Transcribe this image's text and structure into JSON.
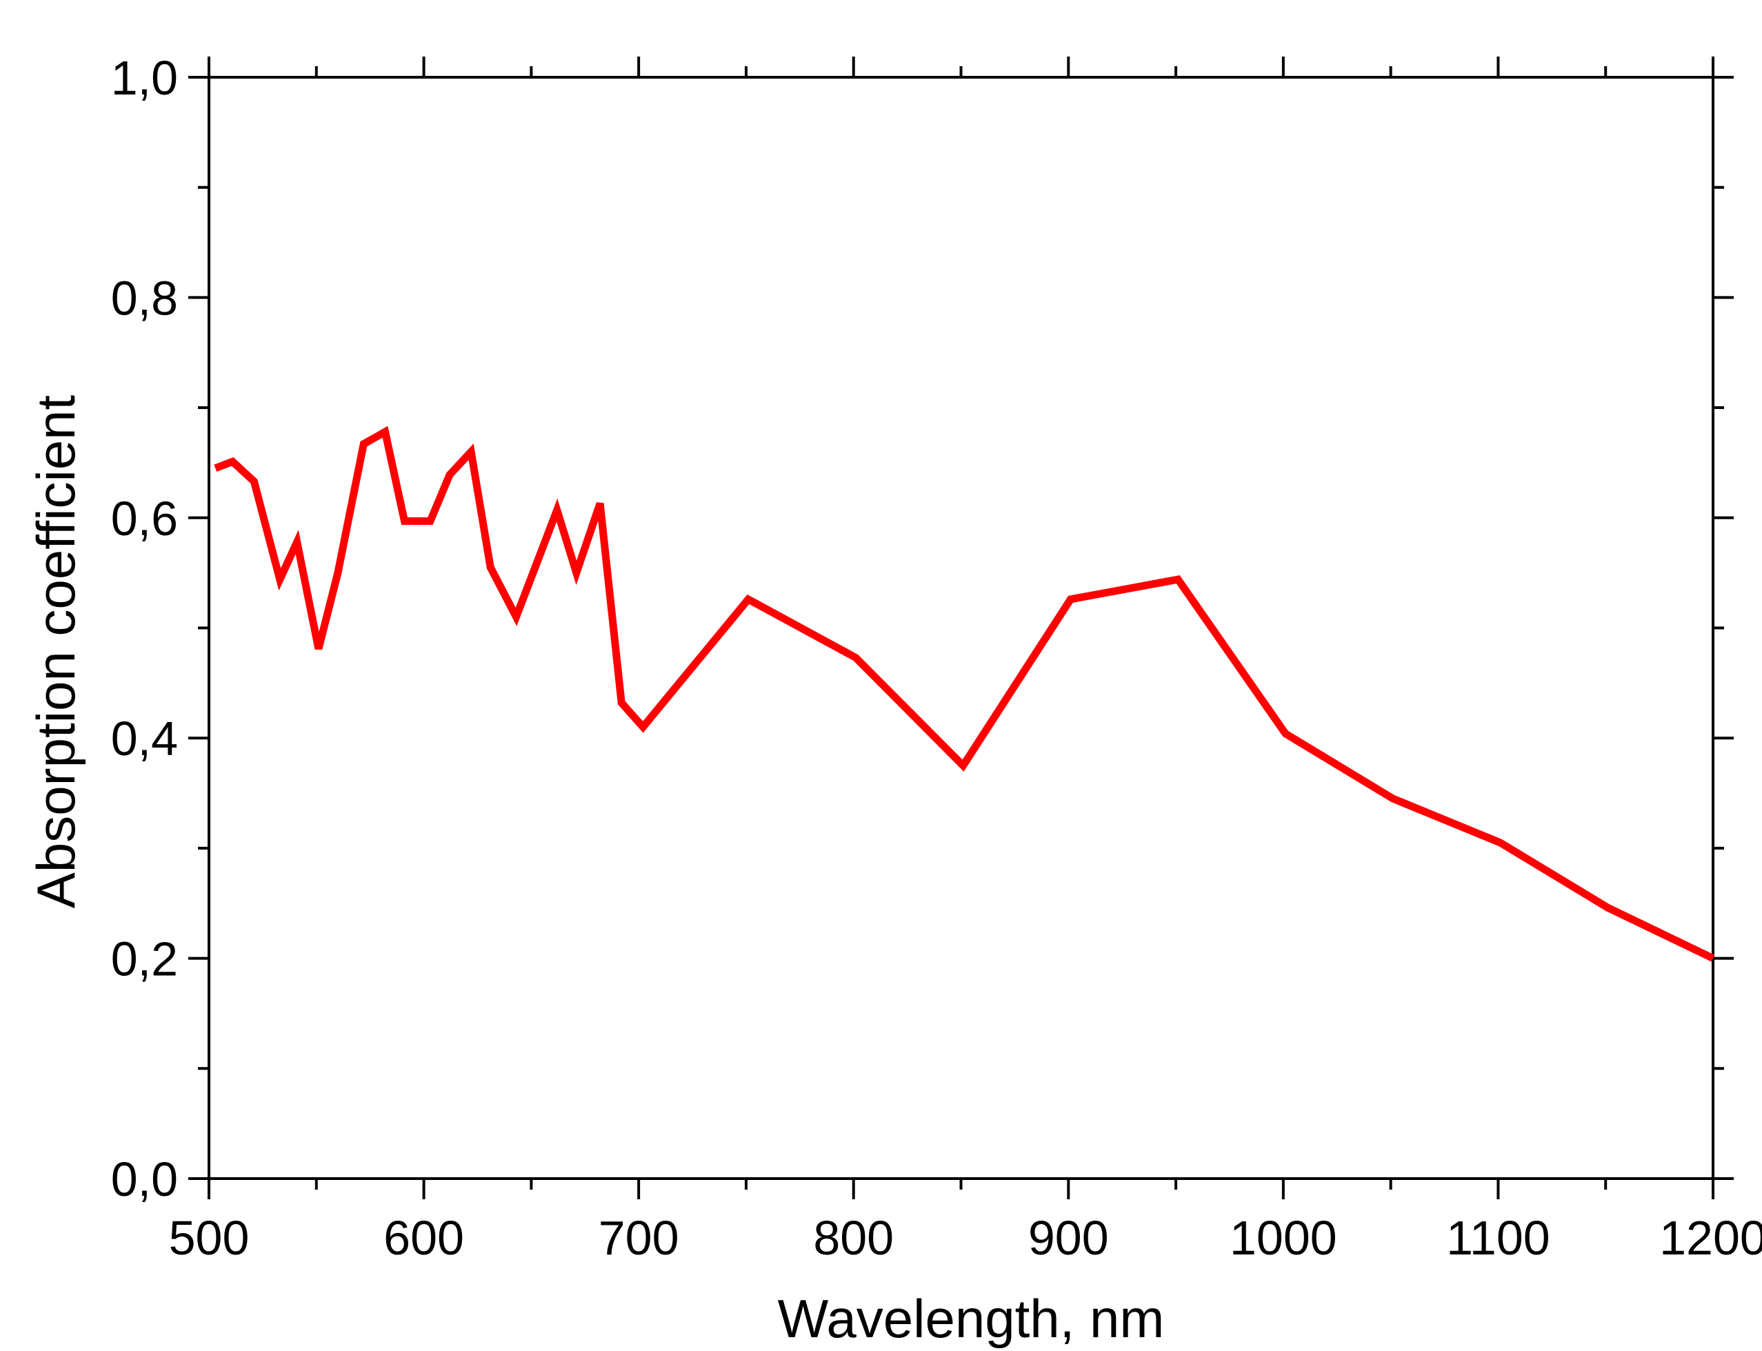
{
  "chart_data": {
    "type": "line",
    "xlabel": "Wavelength,  nm",
    "ylabel": "Absorption coefficient",
    "xlim": [
      500,
      1200
    ],
    "ylim": [
      0.0,
      1.0
    ],
    "x_ticks": [
      "500",
      "600",
      "700",
      "800",
      "900",
      "1000",
      "1100",
      "1200"
    ],
    "x_tick_values": [
      500,
      600,
      700,
      800,
      900,
      1000,
      1100,
      1200
    ],
    "y_ticks": [
      "0,0",
      "0,2",
      "0,4",
      "0,6",
      "0,8",
      "1,0"
    ],
    "y_tick_values": [
      0.0,
      0.2,
      0.4,
      0.6,
      0.8,
      1.0
    ],
    "x_minor_step": 50,
    "y_minor_step": 0.1,
    "grid": false,
    "colors": {
      "series": "#ff0000",
      "axis": "#000000",
      "background": "#ffffff"
    },
    "series": [
      {
        "x": [
          503,
          511,
          521,
          533,
          541,
          551,
          560,
          572,
          582,
          591,
          603,
          612,
          622,
          631,
          643,
          652,
          662,
          671,
          682,
          692,
          702,
          751,
          801,
          851,
          901,
          951,
          1001,
          1051,
          1101,
          1151,
          1200
        ],
        "y": [
          0.645,
          0.651,
          0.633,
          0.544,
          0.578,
          0.481,
          0.55,
          0.667,
          0.678,
          0.597,
          0.597,
          0.639,
          0.66,
          0.555,
          0.51,
          0.556,
          0.607,
          0.55,
          0.613,
          0.432,
          0.41,
          0.526,
          0.473,
          0.375,
          0.526,
          0.544,
          0.404,
          0.345,
          0.305,
          0.246,
          0.2
        ]
      }
    ]
  }
}
